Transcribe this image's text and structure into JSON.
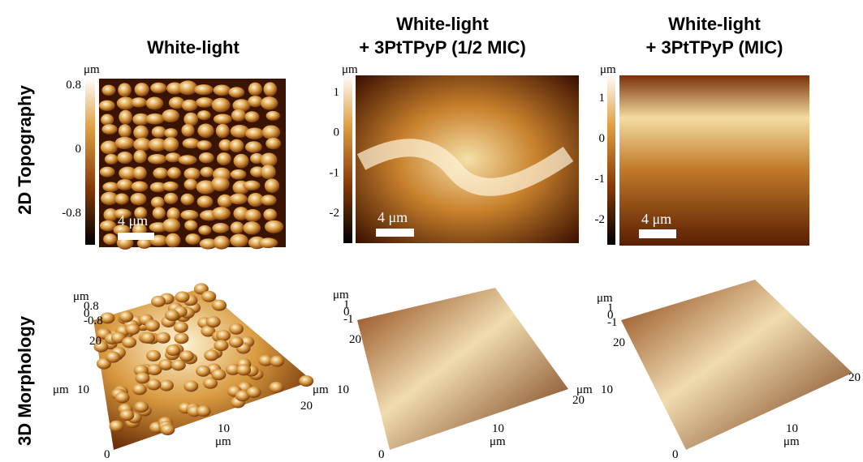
{
  "columns": [
    {
      "title": [
        "White-light"
      ]
    },
    {
      "title": [
        "White-light",
        "+ 3PtTPyP (1/2 MIC)"
      ]
    },
    {
      "title": [
        "White-light",
        "+ 3PtTPyP (MIC)"
      ]
    }
  ],
  "rows": [
    "2D Topography",
    "3D Morphology"
  ],
  "panels_2d": [
    {
      "unit": "μm",
      "ticks": [
        "0.8",
        "0",
        "-0.8"
      ],
      "scale_bar": "4 μm"
    },
    {
      "unit": "μm",
      "ticks": [
        "1",
        "0",
        "-1",
        "-2"
      ],
      "scale_bar": "4 μm"
    },
    {
      "unit": "μm",
      "ticks": [
        "1",
        "0",
        "-1",
        "-2"
      ],
      "scale_bar": "4 μm"
    }
  ],
  "panels_3d": [
    {
      "z_unit": "μm",
      "z_ticks": [
        "0.8",
        "0",
        "-0.8"
      ],
      "y_ticks": [
        "20",
        "10",
        "0"
      ],
      "y_unit": "μm",
      "x_ticks": [
        "10",
        "20"
      ],
      "x_unit": "μm"
    },
    {
      "z_unit": "μm",
      "z_ticks": [
        "1",
        "0",
        "-1"
      ],
      "y_ticks": [
        "20",
        "10",
        "0"
      ],
      "y_unit": "μm",
      "x_ticks": [
        "10",
        "20"
      ],
      "x_unit": "μm"
    },
    {
      "z_unit": "μm",
      "z_ticks": [
        "1",
        "0",
        "-1"
      ],
      "y_ticks": [
        "20",
        "10",
        "0"
      ],
      "y_unit": "μm",
      "x_ticks": [
        "10",
        "20"
      ],
      "x_unit": "μm"
    }
  ]
}
